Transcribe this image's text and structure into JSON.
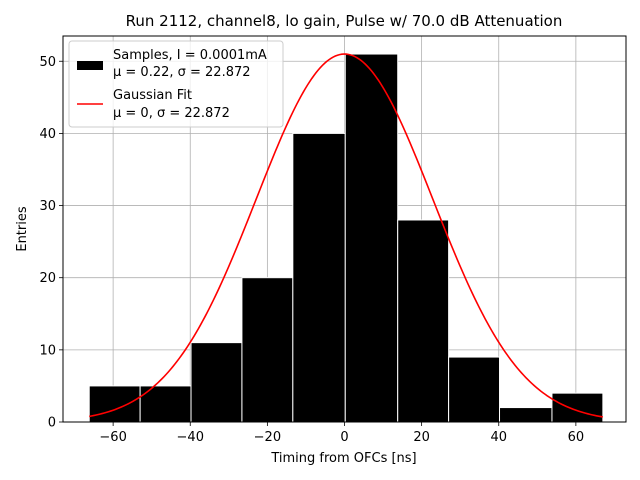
{
  "chart_data": {
    "type": "histogram",
    "title": "Run 2112, channel8, lo gain, Pulse w/ 70.0 dB Attenuation",
    "xlabel": "Timing from OFCs [ns]",
    "ylabel": "Entries",
    "xlim": [
      -73,
      73
    ],
    "ylim": [
      0,
      53.5
    ],
    "grid": true,
    "xticks": [
      -60,
      -40,
      -20,
      0,
      20,
      40,
      60
    ],
    "xtick_labels": [
      "−60",
      "−40",
      "−20",
      "0",
      "20",
      "40",
      "60"
    ],
    "yticks": [
      0,
      10,
      20,
      30,
      40,
      50
    ],
    "ytick_labels": [
      "0",
      "10",
      "20",
      "30",
      "40",
      "50"
    ],
    "bins": [
      {
        "left": -66.2,
        "right": -53.0,
        "count": 5
      },
      {
        "left": -53.0,
        "right": -39.8,
        "count": 5
      },
      {
        "left": -39.8,
        "right": -26.6,
        "count": 11
      },
      {
        "left": -26.6,
        "right": -13.4,
        "count": 20
      },
      {
        "left": -13.4,
        "right": 0.2,
        "count": 40
      },
      {
        "left": 0.2,
        "right": 13.8,
        "count": 51
      },
      {
        "left": 13.8,
        "right": 27.0,
        "count": 28
      },
      {
        "left": 27.0,
        "right": 40.2,
        "count": 9
      },
      {
        "left": 40.2,
        "right": 53.8,
        "count": 2
      },
      {
        "left": 53.8,
        "right": 67.0,
        "count": 4
      }
    ],
    "fit": {
      "type": "gaussian",
      "mu": 0,
      "sigma": 22.872,
      "amplitude": 51,
      "x_range": [
        -66.2,
        67.0
      ],
      "color": "#ff0000"
    },
    "bar_color": "#000000",
    "bar_edge_color": "#ffffff",
    "legend": {
      "position": "upper-left",
      "entries": [
        {
          "kind": "patch",
          "line1": "Samples, I = 0.0001mA",
          "line2": "μ = 0.22, σ = 22.872",
          "color": "#000000"
        },
        {
          "kind": "line",
          "line1": "Gaussian Fit",
          "line2": "μ = 0, σ = 22.872",
          "color": "#ff0000"
        }
      ]
    }
  }
}
